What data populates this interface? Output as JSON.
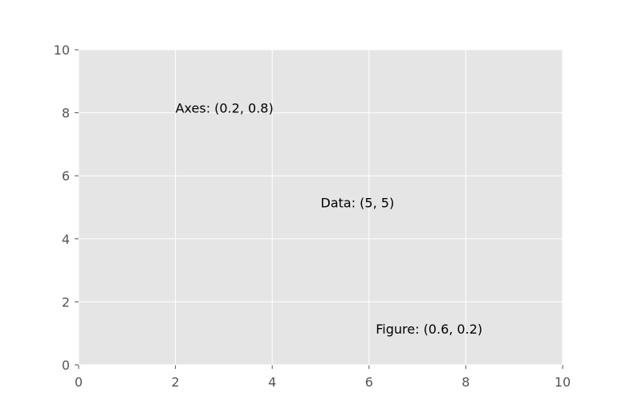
{
  "chart_data": {
    "type": "text",
    "annotations": [
      {
        "text": "Axes: (0.2, 0.8)",
        "x": 2,
        "y": 8
      },
      {
        "text": "Data: (5, 5)",
        "x": 5,
        "y": 5
      },
      {
        "text": "Figure: (0.6, 0.2)",
        "x": 6.14,
        "y": 0.99
      }
    ],
    "xlim": [
      0,
      10
    ],
    "xticks": [
      0,
      2,
      4,
      6,
      8,
      10
    ],
    "ylim": [
      0,
      10
    ],
    "yticks": [
      0,
      2,
      4,
      6,
      8,
      10
    ],
    "grid": true
  }
}
